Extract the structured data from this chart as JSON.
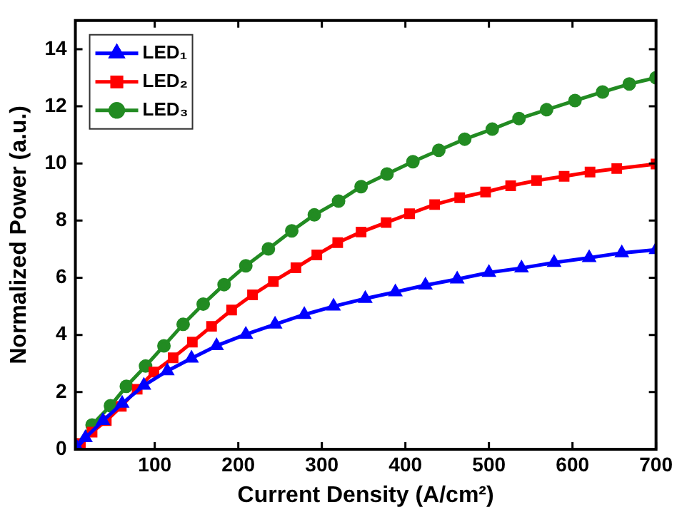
{
  "chart_data": {
    "type": "line",
    "xlabel": "Current Density (A/cm²)",
    "ylabel": "Normalized Power (a.u.)",
    "xlim": [
      5,
      700
    ],
    "xticks": [
      100,
      200,
      300,
      400,
      500,
      600,
      700
    ],
    "ylim": [
      0,
      15
    ],
    "yticks": [
      0,
      2,
      4,
      6,
      8,
      10,
      12,
      14
    ],
    "grid": false,
    "legend": "top left",
    "line_style": "solid",
    "series": [
      {
        "name": "LED₁",
        "color": "#0000ff",
        "marker": "triangle",
        "x": [
          7,
          17,
          38,
          61,
          87,
          115,
          144,
          174,
          209,
          244,
          279,
          314,
          352,
          388,
          424,
          462,
          500,
          539,
          578,
          620,
          659,
          700
        ],
        "values": [
          0.05,
          0.4,
          1.0,
          1.6,
          2.23,
          2.74,
          3.18,
          3.62,
          4.02,
          4.37,
          4.71,
          5.0,
          5.27,
          5.5,
          5.74,
          5.95,
          6.18,
          6.34,
          6.53,
          6.7,
          6.87,
          6.98
        ]
      },
      {
        "name": "LED₂",
        "color": "#ff0000",
        "marker": "square",
        "x": [
          11,
          25,
          42,
          60,
          79,
          99,
          122,
          145,
          168,
          192,
          217,
          242,
          269,
          294,
          319,
          347,
          377,
          405,
          435,
          465,
          496,
          526,
          557,
          590,
          621,
          653,
          700
        ],
        "values": [
          0.2,
          0.6,
          1.0,
          1.5,
          2.1,
          2.7,
          3.2,
          3.75,
          4.3,
          4.87,
          5.4,
          5.87,
          6.35,
          6.8,
          7.23,
          7.6,
          7.93,
          8.24,
          8.56,
          8.8,
          9.0,
          9.22,
          9.4,
          9.55,
          9.7,
          9.82,
          9.98
        ]
      },
      {
        "name": "LED₃",
        "color": "#228b22",
        "marker": "circle",
        "x": [
          7,
          25,
          47,
          66,
          89,
          111,
          134,
          158,
          183,
          209,
          236,
          264,
          291,
          320,
          347,
          378,
          409,
          440,
          471,
          504,
          536,
          569,
          603,
          636,
          668,
          700
        ],
        "values": [
          0.15,
          0.85,
          1.52,
          2.2,
          2.91,
          3.62,
          4.37,
          5.08,
          5.76,
          6.42,
          7.01,
          7.64,
          8.2,
          8.68,
          9.19,
          9.63,
          10.06,
          10.46,
          10.85,
          11.2,
          11.57,
          11.88,
          12.2,
          12.5,
          12.78,
          13.0
        ]
      }
    ]
  }
}
